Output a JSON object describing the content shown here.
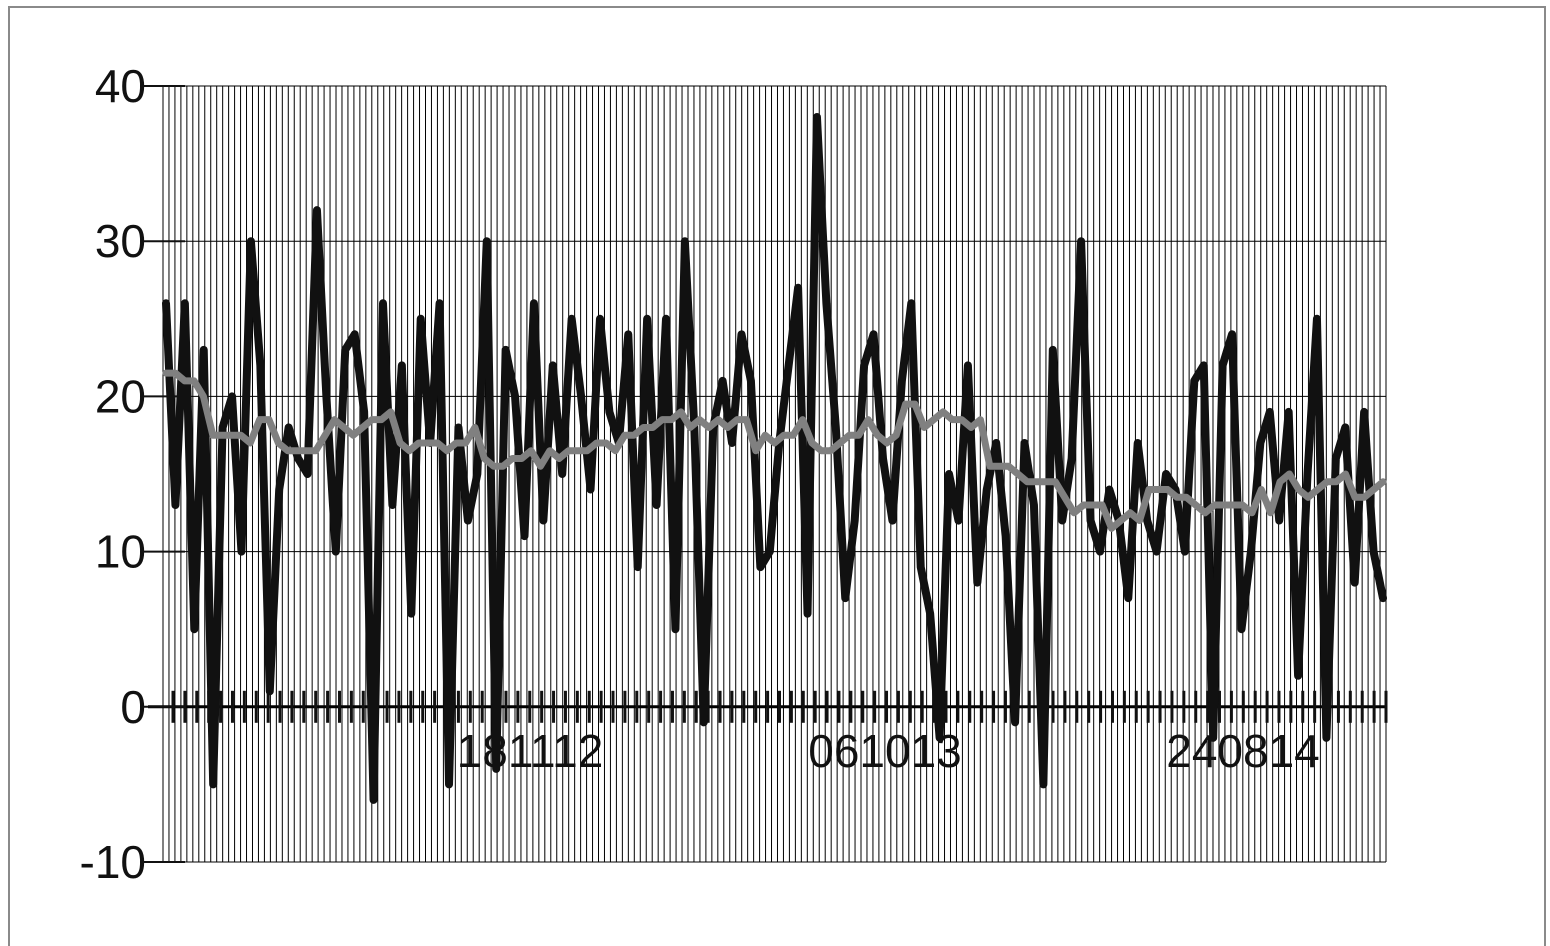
{
  "chart_data": {
    "type": "line",
    "title": "",
    "xlabel": "",
    "ylabel": "",
    "ylim": [
      -10,
      40
    ],
    "yticks": [
      -10,
      0,
      10,
      20,
      30,
      40
    ],
    "ytick_labels": [
      "-10",
      "0",
      "10",
      "20",
      "30",
      "40"
    ],
    "xtick_labels": [
      "181112",
      "061013",
      "240814"
    ],
    "grid": "dense vertical lines with horizontal lines at every 10 units",
    "legend": "none",
    "colors": {
      "series_1": "#111111",
      "series_2": "#808080",
      "grid": "#000000"
    },
    "series": [
      {
        "values": [
          26,
          13,
          26,
          5,
          23,
          -5,
          18,
          20,
          10,
          30,
          22,
          1,
          14,
          18,
          16,
          15,
          32,
          20,
          10,
          23,
          24,
          19,
          -6,
          26,
          13,
          22,
          6,
          25,
          17,
          26,
          -5,
          18,
          12,
          15,
          30,
          -4,
          23,
          20,
          11,
          26,
          12,
          22,
          15,
          25,
          20,
          14,
          25,
          19,
          17,
          24,
          9,
          25,
          13,
          25,
          5,
          30,
          18,
          -1,
          18,
          21,
          17,
          24,
          21,
          9,
          10,
          17,
          22,
          27,
          6,
          38,
          26,
          18,
          7,
          12,
          22,
          24,
          16,
          12,
          21,
          26,
          9,
          6,
          -2,
          15,
          12,
          22,
          8,
          14,
          17,
          11,
          -1,
          17,
          13,
          -5,
          23,
          12,
          16,
          30,
          12,
          10,
          14,
          12,
          7,
          17,
          12,
          10,
          15,
          14,
          10,
          21,
          22,
          -2,
          22,
          24,
          5,
          10,
          17,
          19,
          12,
          19,
          2,
          15,
          25,
          -2,
          16,
          18,
          8,
          19,
          10,
          7
        ],
        "smoothing": "raw"
      },
      {
        "values": [
          21.5,
          21.5,
          21.0,
          21.0,
          20.0,
          17.5,
          17.5,
          17.5,
          17.5,
          17.0,
          18.5,
          18.5,
          17.0,
          16.5,
          16.5,
          16.5,
          16.5,
          17.5,
          18.5,
          18.0,
          17.5,
          18.0,
          18.5,
          18.5,
          19.0,
          17.0,
          16.5,
          17.0,
          17.0,
          17.0,
          16.5,
          17.0,
          17.0,
          18.0,
          16.0,
          15.5,
          15.5,
          16.0,
          16.0,
          16.5,
          15.5,
          16.5,
          16.0,
          16.5,
          16.5,
          16.5,
          17.0,
          17.0,
          16.5,
          17.5,
          17.5,
          18.0,
          18.0,
          18.5,
          18.5,
          19.0,
          18.0,
          18.5,
          18.0,
          18.5,
          18.0,
          18.5,
          18.5,
          16.5,
          17.5,
          17.0,
          17.5,
          17.5,
          18.5,
          17.0,
          16.5,
          16.5,
          17.0,
          17.5,
          17.5,
          18.5,
          17.5,
          17.0,
          17.5,
          19.5,
          19.5,
          18.0,
          18.5,
          19.0,
          18.5,
          18.5,
          18.0,
          18.5,
          15.5,
          15.5,
          15.5,
          15.0,
          14.5,
          14.5,
          14.5,
          14.5,
          13.5,
          12.5,
          13.0,
          13.0,
          13.0,
          11.5,
          12.0,
          12.5,
          12.0,
          14.0,
          14.0,
          14.0,
          13.5,
          13.5,
          13.0,
          12.5,
          13.0,
          13.0,
          13.0,
          13.0,
          12.5,
          14.0,
          12.5,
          14.5,
          15.0,
          14.0,
          13.5,
          14.0,
          14.5,
          14.5,
          15.0,
          13.5,
          13.5,
          14.0,
          14.5
        ]
      }
    ]
  }
}
